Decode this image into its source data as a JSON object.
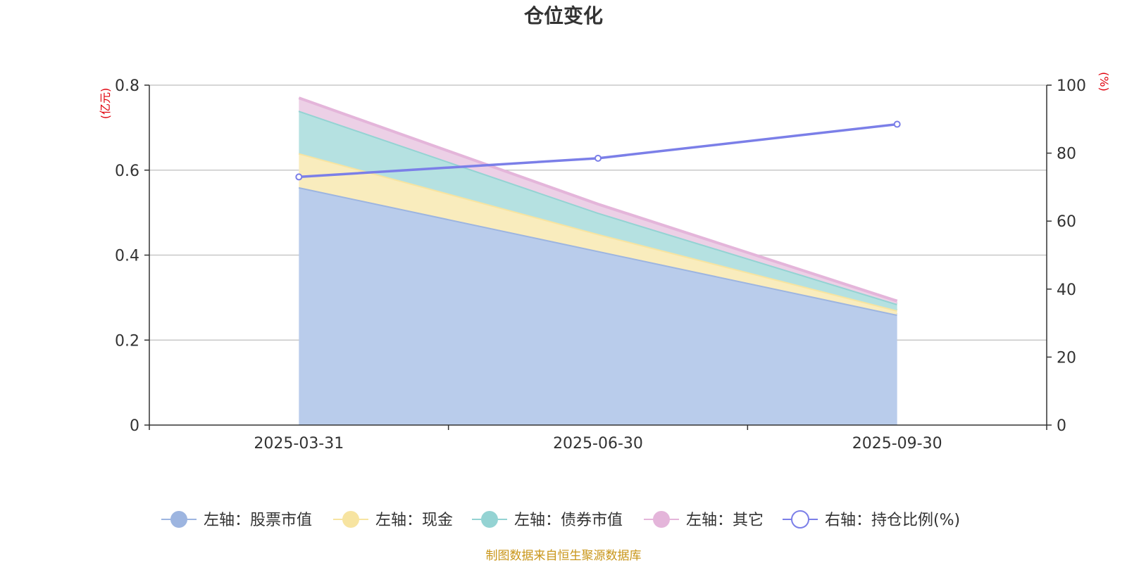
{
  "chart_data": {
    "type": "area",
    "title": "仓位变化",
    "categories": [
      "2025-03-31",
      "2025-06-30",
      "2025-09-30"
    ],
    "y_left": {
      "unit": "(亿元)",
      "ylim": [
        0,
        0.8
      ],
      "ticks": [
        "0",
        "0.2",
        "0.4",
        "0.6",
        "0.8"
      ]
    },
    "y_right": {
      "unit": "(%)",
      "ylim": [
        0,
        100
      ],
      "ticks": [
        "0",
        "20",
        "40",
        "60",
        "80",
        "100"
      ]
    },
    "stacked": true,
    "series": [
      {
        "name": "左轴：股票市值",
        "axis": "left",
        "kind": "area",
        "color": "#9db5e0",
        "fill": "#b9cceb",
        "values": [
          0.56,
          0.41,
          0.26
        ]
      },
      {
        "name": "左轴：现金",
        "axis": "left",
        "kind": "area",
        "color": "#f7e4a1",
        "fill": "#f9ecbd",
        "values": [
          0.08,
          0.04,
          0.01
        ]
      },
      {
        "name": "左轴：债券市值",
        "axis": "left",
        "kind": "area",
        "color": "#94d3d3",
        "fill": "#b5e1e1",
        "values": [
          0.1,
          0.05,
          0.015
        ]
      },
      {
        "name": "左轴：其它",
        "axis": "left",
        "kind": "area",
        "color": "#e4b5da",
        "fill": "#ecd0e6",
        "values": [
          0.03,
          0.02,
          0.007
        ]
      },
      {
        "name": "右轴：持仓比例(%)",
        "axis": "right",
        "kind": "line",
        "color": "#7b7fe8",
        "values": [
          73,
          78.5,
          88.5
        ]
      }
    ],
    "grid": true,
    "legend_position": "bottom"
  },
  "source_note": "制图数据来自恒生聚源数据库"
}
